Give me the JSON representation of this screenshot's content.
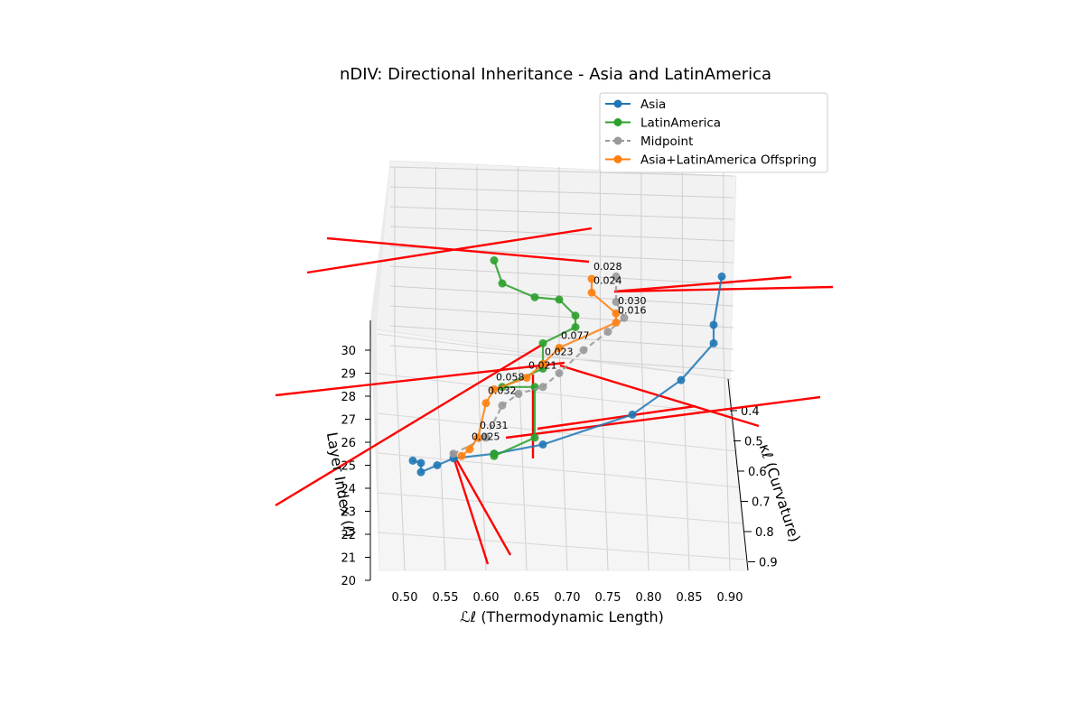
{
  "chart_data": {
    "type": "line",
    "title": "nDIV: Directional Inheritance - Asia and LatinAmerica",
    "xlabel": "ℒℓ (Thermodynamic Length)",
    "ylabel": "κℓ (Curvature)",
    "zlabel": "Layer Index (ℓ)",
    "x_ticks": [
      "0.50",
      "0.55",
      "0.60",
      "0.65",
      "0.70",
      "0.75",
      "0.80",
      "0.85",
      "0.90"
    ],
    "y_ticks": [
      "0.4",
      "0.5",
      "0.6",
      "0.7",
      "0.8",
      "0.9"
    ],
    "z_ticks": [
      "20",
      "21",
      "22",
      "23",
      "24",
      "25",
      "26",
      "27",
      "28",
      "29",
      "30"
    ],
    "legend_position": "top-right",
    "grid": true,
    "colors": {
      "asia": "#1f77b4",
      "latinamerica": "#2ca02c",
      "midpoint": "#999999",
      "offspring": "#ff7f0e",
      "arrows": "#ff0000",
      "distance_labels": "#ff0000"
    },
    "legend": [
      {
        "label": "Asia",
        "color": "#1f77b4",
        "dashed": false
      },
      {
        "label": "LatinAmerica",
        "color": "#2ca02c",
        "dashed": false
      },
      {
        "label": "Midpoint",
        "color": "#999999",
        "dashed": true
      },
      {
        "label": "Asia+LatinAmerica Offspring",
        "color": "#ff7f0e",
        "dashed": false
      }
    ],
    "series": [
      {
        "name": "Asia",
        "key": "asia",
        "points": [
          [
            0.51,
            25.2
          ],
          [
            0.52,
            25.1
          ],
          [
            0.52,
            24.7
          ],
          [
            0.54,
            25.0
          ],
          [
            0.56,
            25.3
          ],
          [
            0.61,
            25.5
          ],
          [
            0.67,
            25.9
          ],
          [
            0.78,
            27.2
          ],
          [
            0.84,
            28.7
          ],
          [
            0.88,
            30.3
          ],
          [
            0.88,
            31.1
          ],
          [
            0.89,
            33.2
          ]
        ]
      },
      {
        "name": "LatinAmerica",
        "key": "latinamerica",
        "points": [
          [
            0.61,
            25.5
          ],
          [
            0.61,
            25.4
          ],
          [
            0.66,
            26.2
          ],
          [
            0.66,
            28.4
          ],
          [
            0.62,
            28.4
          ],
          [
            0.67,
            29.2
          ],
          [
            0.67,
            30.3
          ],
          [
            0.71,
            31.0
          ],
          [
            0.71,
            31.5
          ],
          [
            0.69,
            32.2
          ],
          [
            0.66,
            32.3
          ],
          [
            0.62,
            32.9
          ],
          [
            0.61,
            33.9
          ]
        ]
      },
      {
        "name": "Midpoint",
        "key": "midpoint",
        "points": [
          [
            0.56,
            25.5
          ],
          [
            0.6,
            26.2
          ],
          [
            0.62,
            27.6
          ],
          [
            0.64,
            28.1
          ],
          [
            0.67,
            28.4
          ],
          [
            0.69,
            29.0
          ],
          [
            0.72,
            30.0
          ],
          [
            0.75,
            30.8
          ],
          [
            0.77,
            31.4
          ],
          [
            0.76,
            32.1
          ],
          [
            0.76,
            33.2
          ]
        ]
      },
      {
        "name": "Asia+LatinAmerica Offspring",
        "key": "offspring",
        "points": [
          [
            0.57,
            25.4
          ],
          [
            0.58,
            25.7
          ],
          [
            0.59,
            26.2
          ],
          [
            0.6,
            27.7
          ],
          [
            0.61,
            28.3
          ],
          [
            0.65,
            28.8
          ],
          [
            0.67,
            29.4
          ],
          [
            0.69,
            30.1
          ],
          [
            0.76,
            31.2
          ],
          [
            0.76,
            31.6
          ],
          [
            0.73,
            32.5
          ],
          [
            0.73,
            33.1
          ]
        ]
      }
    ],
    "distance_labels": [
      {
        "text": "0.028",
        "series_index": 11
      },
      {
        "text": "0.024",
        "series_index": 10
      },
      {
        "text": "0.030",
        "series_index": 9
      },
      {
        "text": "0.016",
        "series_index": 8
      },
      {
        "text": "0.077",
        "series_index": 7
      },
      {
        "text": "0.023",
        "series_index": 6
      },
      {
        "text": "0.021",
        "series_index": 5
      },
      {
        "text": "0.058",
        "series_index": 4
      },
      {
        "text": "0.032",
        "series_index": 3
      },
      {
        "text": "0.031",
        "series_index": 2
      },
      {
        "text": "0.025",
        "series_index": 1
      }
    ]
  }
}
